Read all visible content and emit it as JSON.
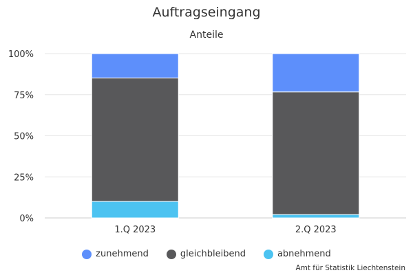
{
  "chart_data": {
    "type": "bar",
    "stacked": true,
    "title": "Auftragseingang",
    "subtitle": "Anteile",
    "categories": [
      "1.Q 2023",
      "2.Q 2023"
    ],
    "series": [
      {
        "name": "zunehmend",
        "color": "#5d8ffb",
        "values": [
          14.8,
          23.3
        ]
      },
      {
        "name": "gleichbleibend",
        "color": "#58585a",
        "values": [
          75.1,
          74.6
        ]
      },
      {
        "name": "abnehmend",
        "color": "#4cc3f1",
        "values": [
          10.1,
          2.1
        ]
      }
    ],
    "yticks": [
      "0%",
      "25%",
      "50%",
      "75%",
      "100%"
    ],
    "ylim": [
      0,
      100
    ],
    "grid": true,
    "legend_position": "bottom"
  },
  "credit": "Amt für Statistik Liechtenstein"
}
